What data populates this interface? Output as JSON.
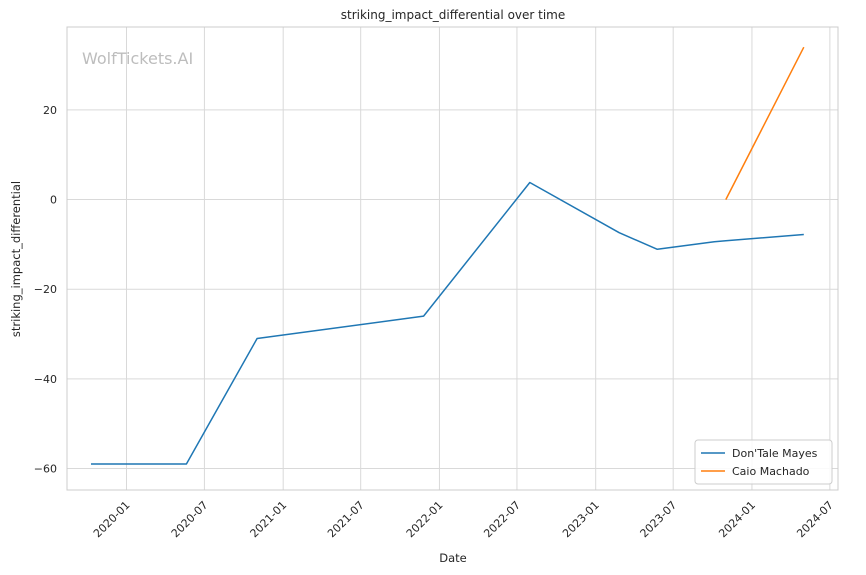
{
  "watermark": "WolfTickets.AI",
  "chart_data": {
    "type": "line",
    "title": "striking_impact_differential over time",
    "xlabel": "Date",
    "ylabel": "striking_impact_differential",
    "x_ticks": [
      "2020-01",
      "2020-07",
      "2021-01",
      "2021-07",
      "2022-01",
      "2022-07",
      "2023-01",
      "2023-07",
      "2024-01",
      "2024-07"
    ],
    "y_ticks": [
      -60,
      -40,
      -20,
      0,
      20
    ],
    "xlim": [
      "2019-08-15",
      "2024-07-20"
    ],
    "ylim": [
      -64.8,
      38.5
    ],
    "grid": true,
    "legend_position": "lower-right",
    "series": [
      {
        "name": "Don'Tale Mayes",
        "color": "#1f77b4",
        "points": [
          {
            "x": "2019-10-10",
            "y": -59
          },
          {
            "x": "2020-05-20",
            "y": -59
          },
          {
            "x": "2020-11-01",
            "y": -31
          },
          {
            "x": "2021-11-25",
            "y": -26
          },
          {
            "x": "2022-07-31",
            "y": 3.8
          },
          {
            "x": "2023-02-25",
            "y": -7.4
          },
          {
            "x": "2023-05-25",
            "y": -11.1
          },
          {
            "x": "2023-10-05",
            "y": -9.4
          },
          {
            "x": "2023-11-01",
            "y": -9.2
          },
          {
            "x": "2024-05-01",
            "y": -7.8
          }
        ]
      },
      {
        "name": "Caio Machado",
        "color": "#ff7f0e",
        "points": [
          {
            "x": "2023-11-01",
            "y": 0
          },
          {
            "x": "2024-05-01",
            "y": 34
          }
        ]
      }
    ]
  }
}
